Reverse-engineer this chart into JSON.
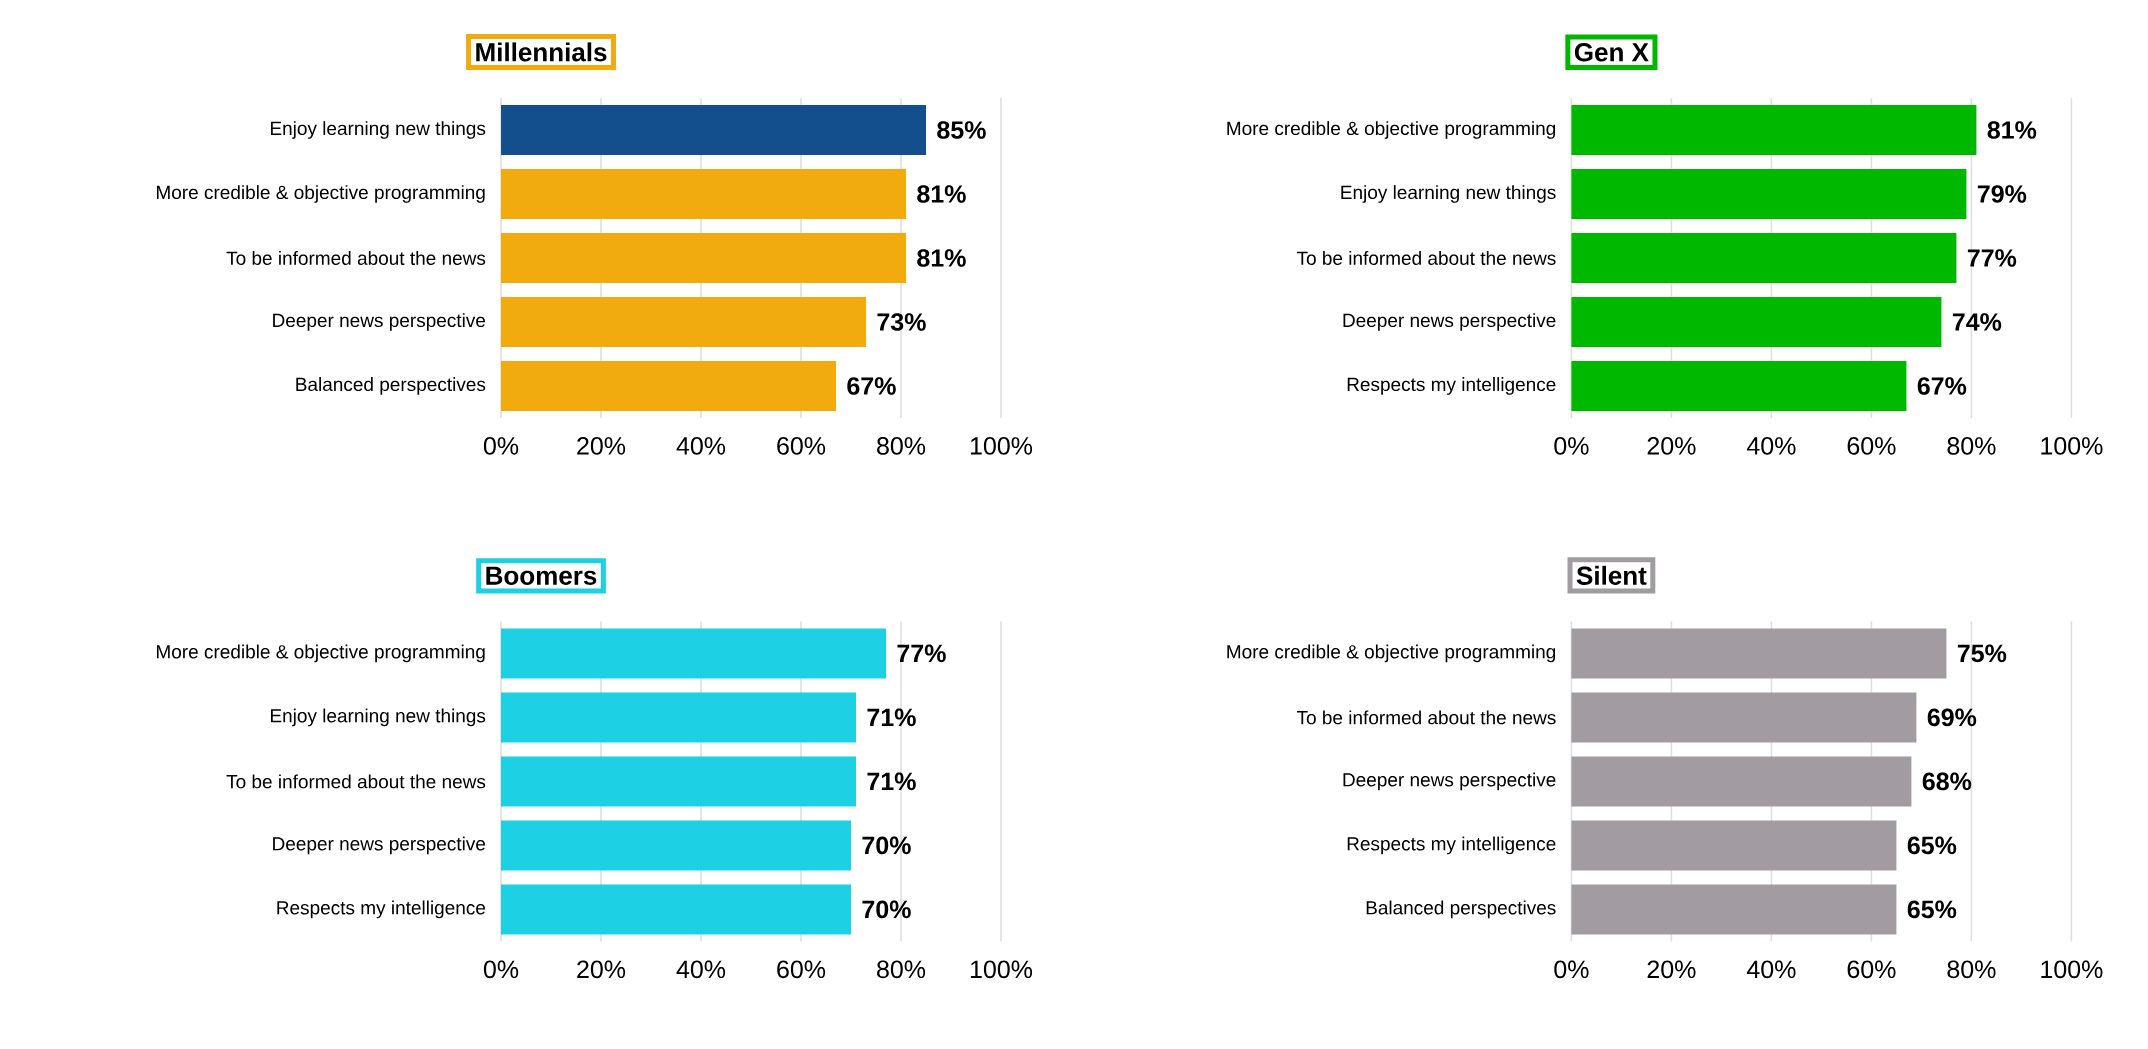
{
  "chart_data": [
    {
      "type": "bar",
      "orientation": "horizontal",
      "title": "Millennials",
      "color": "#f2ab0f",
      "categories": [
        "Enjoy learning new things",
        "More credible & objective programming",
        "To be informed about the news",
        "Deeper news perspective",
        "Balanced perspectives"
      ],
      "values": [
        85,
        81,
        81,
        73,
        67
      ],
      "colors": [
        "#134f8c",
        "#f2ab0f",
        "#f2ab0f",
        "#f2ab0f",
        "#f2ab0f"
      ],
      "value_labels": [
        "85%",
        "81%",
        "81%",
        "73%",
        "67%"
      ],
      "xlim": [
        0,
        100
      ],
      "xticks": [
        {
          "value": 0,
          "label": "0%"
        },
        {
          "value": 20,
          "label": "20%"
        },
        {
          "value": 40,
          "label": "40%"
        },
        {
          "value": 60,
          "label": "60%"
        },
        {
          "value": 80,
          "label": "80%"
        },
        {
          "value": 100,
          "label": "100%"
        }
      ],
      "grid": "x"
    },
    {
      "type": "bar",
      "orientation": "horizontal",
      "title": "Gen X",
      "color": "#00b800",
      "categories": [
        "More credible & objective programming",
        "Enjoy learning new things",
        "To be informed about the news",
        "Deeper news perspective",
        "Respects my intelligence"
      ],
      "values": [
        81,
        79,
        77,
        74,
        67
      ],
      "value_labels": [
        "81%",
        "79%",
        "77%",
        "74%",
        "67%"
      ],
      "xlim": [
        0,
        100
      ],
      "xticks": [
        {
          "value": 0,
          "label": "0%"
        },
        {
          "value": 20,
          "label": "20%"
        },
        {
          "value": 40,
          "label": "40%"
        },
        {
          "value": 60,
          "label": "60%"
        },
        {
          "value": 80,
          "label": "80%"
        },
        {
          "value": 100,
          "label": "100%"
        }
      ],
      "grid": "x"
    },
    {
      "type": "bar",
      "orientation": "horizontal",
      "title": "Boomers",
      "color": "#1dd0e4",
      "categories": [
        "More credible & objective programming",
        "Enjoy learning new things",
        "To be informed about the news",
        "Deeper news perspective",
        "Respects my intelligence"
      ],
      "values": [
        77,
        71,
        71,
        70,
        70
      ],
      "value_labels": [
        "77%",
        "71%",
        "71%",
        "70%",
        "70%"
      ],
      "xlim": [
        0,
        100
      ],
      "xticks": [
        {
          "value": 0,
          "label": "0%"
        },
        {
          "value": 20,
          "label": "20%"
        },
        {
          "value": 40,
          "label": "40%"
        },
        {
          "value": 60,
          "label": "60%"
        },
        {
          "value": 80,
          "label": "80%"
        },
        {
          "value": 100,
          "label": "100%"
        }
      ],
      "grid": "x"
    },
    {
      "type": "bar",
      "orientation": "horizontal",
      "title": "Silent",
      "color": "#a29ba2",
      "categories": [
        "More credible & objective programming",
        "To be informed about the news",
        "Deeper news perspective",
        "Respects my intelligence",
        "Balanced perspectives"
      ],
      "values": [
        75,
        69,
        68,
        65,
        65
      ],
      "value_labels": [
        "75%",
        "69%",
        "68%",
        "65%",
        "65%"
      ],
      "xlim": [
        0,
        100
      ],
      "xticks": [
        {
          "value": 0,
          "label": "0%"
        },
        {
          "value": 20,
          "label": "20%"
        },
        {
          "value": 40,
          "label": "40%"
        },
        {
          "value": 60,
          "label": "60%"
        },
        {
          "value": 80,
          "label": "80%"
        },
        {
          "value": 100,
          "label": "100%"
        }
      ],
      "grid": "x"
    }
  ]
}
